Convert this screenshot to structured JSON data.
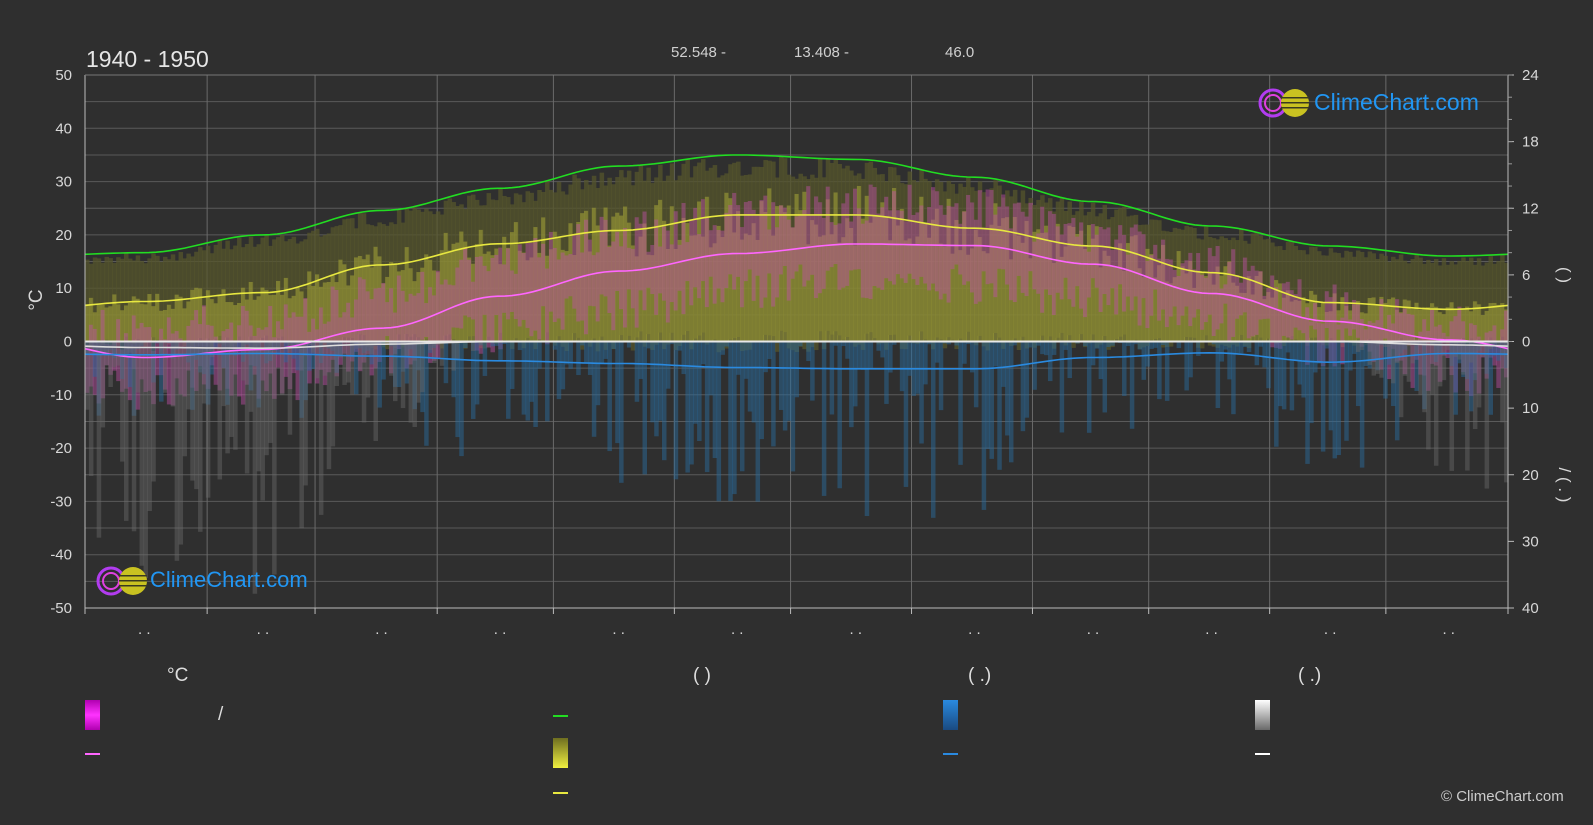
{
  "period": "1940 - 1950",
  "location": {
    "lat": "52.548 -",
    "lon": "13.408 -",
    "elev": "46.0"
  },
  "copyright": "© ClimeChart.com",
  "logo": {
    "text": "ClimeChart.com"
  },
  "colors": {
    "background": "#2f2f2f",
    "daylight": "#22dd22",
    "sunshine": "#e8e840",
    "temp_mean": "#ff66ff",
    "rain": "#2a8ae0",
    "snow": "#ffffff",
    "logo_text": "#2196f3"
  },
  "legend": {
    "temp_header": "°C",
    "col2_header": "(          )",
    "col3_header": "(    .)",
    "col4_header": "(    .)",
    "temp_range_label": "/"
  },
  "chart_data": {
    "type": "area",
    "title": "1940 - 1950",
    "x_tick_labels": [
      ". .",
      ". .",
      ". .",
      ". .",
      ". .",
      ". .",
      ". .",
      ". .",
      ". .",
      ". .",
      ". .",
      ". ."
    ],
    "left_axis": {
      "label": "°C",
      "range": [
        -50,
        50
      ],
      "ticks": [
        50,
        40,
        30,
        20,
        10,
        0,
        -10,
        -20,
        -30,
        -40,
        -50
      ]
    },
    "right_axis_top": {
      "label": "(    )",
      "range": [
        0,
        24
      ],
      "ticks": [
        24,
        18,
        12,
        6,
        0
      ]
    },
    "right_axis_bottom": {
      "label": "/ (  .  )",
      "range": [
        0,
        40
      ],
      "ticks": [
        0,
        10,
        20,
        30,
        40
      ]
    },
    "months_x": [
      0.5,
      1.5,
      2.5,
      3.5,
      4.5,
      5.5,
      6.5,
      7.5,
      8.5,
      9.5,
      10.5,
      11.5
    ],
    "series": [
      {
        "key": "daylight",
        "unit": "h",
        "values": [
          8.0,
          9.6,
          11.8,
          13.8,
          15.8,
          16.8,
          16.4,
          14.8,
          12.6,
          10.4,
          8.6,
          7.7
        ]
      },
      {
        "key": "sunshine",
        "unit": "h",
        "values": [
          3.6,
          4.4,
          6.9,
          8.8,
          10.0,
          11.4,
          11.4,
          10.2,
          8.6,
          6.2,
          3.5,
          2.9
        ]
      },
      {
        "key": "temp_mean",
        "unit": "°C",
        "values": [
          -3.0,
          -1.5,
          2.5,
          8.5,
          13.2,
          16.5,
          18.3,
          18.0,
          14.5,
          9.0,
          3.8,
          0.3
        ]
      },
      {
        "key": "rain",
        "unit": "mm",
        "values": [
          2.0,
          1.8,
          2.2,
          2.9,
          3.3,
          3.9,
          4.1,
          4.1,
          2.4,
          1.7,
          3.1,
          1.8
        ]
      },
      {
        "key": "snow",
        "unit": "mm",
        "values": [
          0.9,
          1.0,
          0.4,
          0.0,
          0.0,
          0.0,
          0.0,
          0.0,
          0.0,
          0.0,
          0.0,
          0.5
        ]
      }
    ],
    "temp_band_max": [
      2,
      4,
      9,
      15,
      20,
      24,
      26,
      25,
      20,
      14,
      7,
      3
    ],
    "temp_band_min": [
      -9,
      -8,
      -3,
      2,
      6,
      10,
      12,
      11,
      8,
      4,
      -1,
      -6
    ],
    "grid": true
  }
}
